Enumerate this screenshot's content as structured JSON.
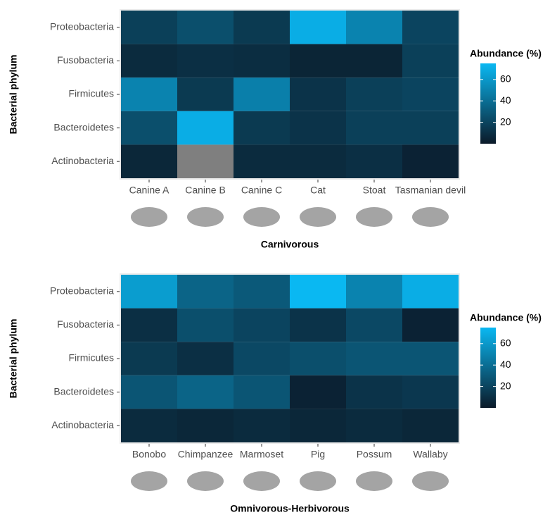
{
  "chart_data": [
    {
      "type": "heatmap",
      "x_label": "Carnivorous",
      "y_label": "Bacterial phylum",
      "legend_title": "Abundance (%)",
      "categories": [
        "Canine A",
        "Canine B",
        "Canine C",
        "Cat",
        "Stoat",
        "Tasmanian devil"
      ],
      "rows": [
        "Proteobacteria",
        "Fusobacteria",
        "Firmicutes",
        "Bacteroidetes",
        "Actinobacteria"
      ],
      "values": [
        [
          18,
          25,
          15,
          70,
          50,
          20
        ],
        [
          8,
          10,
          9,
          5,
          5,
          18
        ],
        [
          50,
          15,
          48,
          12,
          18,
          20
        ],
        [
          25,
          70,
          15,
          12,
          18,
          18
        ],
        [
          6,
          null,
          8,
          8,
          10,
          4
        ]
      ],
      "zlim": [
        0,
        75
      ],
      "zticks": [
        20,
        40,
        60
      ],
      "low_color": "#0b1a29",
      "high_color": "#0ab8f2",
      "na_color": "#7f7f7f"
    },
    {
      "type": "heatmap",
      "x_label": "Omnivorous-Herbivorous",
      "y_label": "Bacterial phylum",
      "legend_title": "Abundance (%)",
      "categories": [
        "Bonobo",
        "Chimpanzee",
        "Marmoset",
        "Pig",
        "Possum",
        "Wallaby"
      ],
      "rows": [
        "Proteobacteria",
        "Fusobacteria",
        "Firmicutes",
        "Bacteroidetes",
        "Actinobacteria"
      ],
      "values": [
        [
          62,
          35,
          30,
          75,
          50,
          70
        ],
        [
          10,
          25,
          20,
          12,
          22,
          4
        ],
        [
          15,
          10,
          22,
          25,
          28,
          28
        ],
        [
          28,
          35,
          28,
          4,
          12,
          14
        ],
        [
          8,
          6,
          8,
          6,
          8,
          6
        ]
      ],
      "zlim": [
        0,
        75
      ],
      "zticks": [
        20,
        40,
        60
      ],
      "low_color": "#0b1a29",
      "high_color": "#0ab8f2",
      "na_color": "#7f7f7f"
    }
  ]
}
